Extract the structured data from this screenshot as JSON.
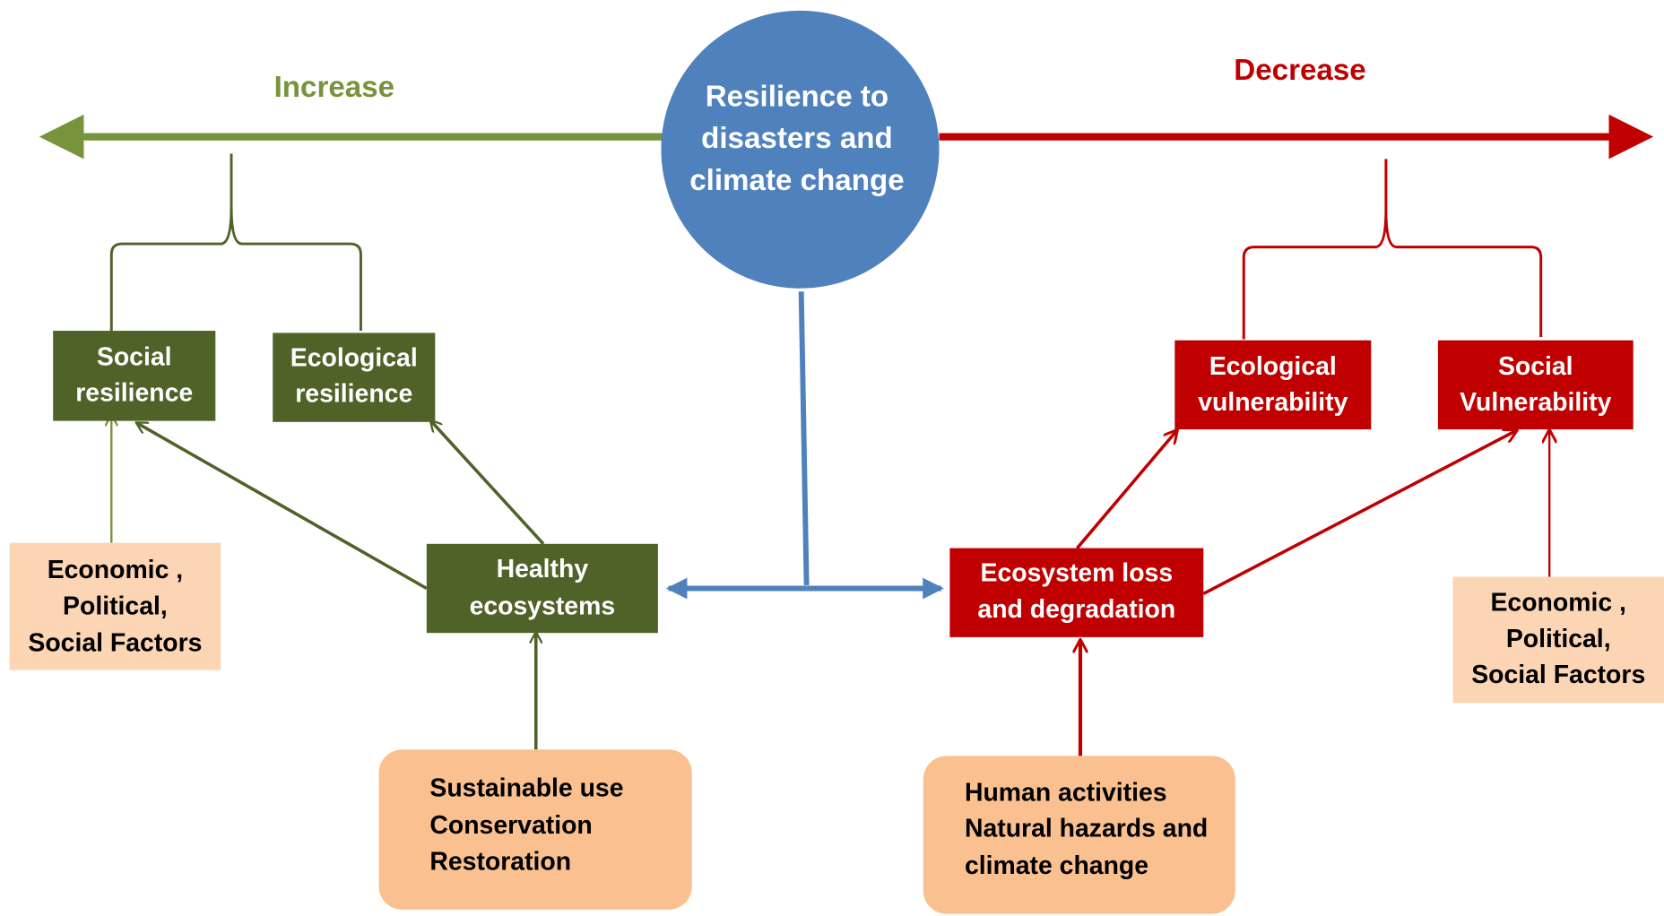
{
  "increase": "Increase",
  "decrease": "Decrease",
  "center": {
    "lines": [
      "Resilience to",
      "disasters and",
      "climate change"
    ]
  },
  "nodes": [
    {
      "lines": [
        "Social",
        "resilience"
      ]
    },
    {
      "lines": [
        "Ecological",
        "resilience"
      ]
    },
    {
      "lines": [
        "Healthy",
        "ecosystems"
      ]
    },
    {
      "lines": [
        "Ecological",
        "vulnerability"
      ]
    },
    {
      "lines": [
        "Social",
        "Vulnerability"
      ]
    },
    {
      "lines": [
        "Ecosystem loss",
        "and degradation"
      ]
    },
    {
      "lines": [
        "Economic ,",
        "Political,",
        "Social Factors"
      ]
    },
    {
      "lines": [
        "Economic ,",
        "Political,",
        "Social Factors"
      ]
    },
    {
      "lines": [
        "Sustainable use",
        "Conservation",
        "Restoration"
      ]
    },
    {
      "lines": [
        "Human activities",
        "Natural hazards and",
        "climate change"
      ]
    }
  ]
}
